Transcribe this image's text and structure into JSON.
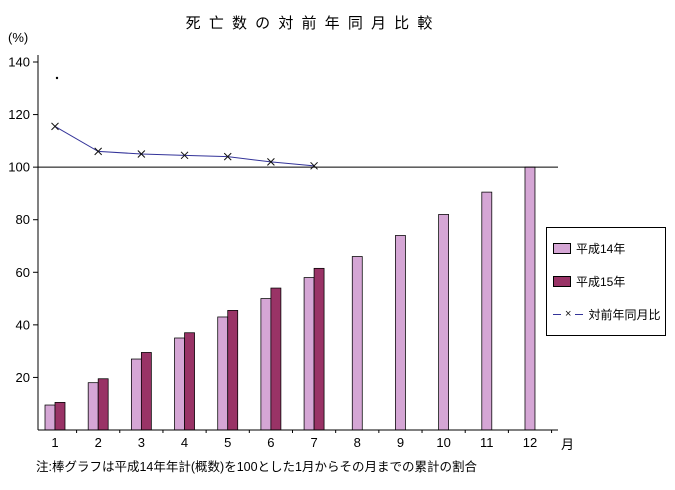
{
  "title": "死 亡 数 の 対 前 年 同 月 比 較",
  "y_axis_unit": "(%)",
  "x_axis_unit": "月",
  "note": "注:棒グラフは平成14年年計(概数)を100とした1月からその月までの累計の割合",
  "chart_data": {
    "type": "bar",
    "title": "死亡数の対前年同月比較",
    "categories": [
      "1",
      "2",
      "3",
      "4",
      "5",
      "6",
      "7",
      "8",
      "9",
      "10",
      "11",
      "12"
    ],
    "series": [
      {
        "name": "平成14年",
        "type": "bar",
        "color": "#d5a6d5",
        "values": [
          9.5,
          18,
          27,
          35,
          43,
          50,
          58,
          66,
          74,
          82,
          90.5,
          100
        ]
      },
      {
        "name": "平成15年",
        "type": "bar",
        "color": "#993366",
        "values": [
          10.5,
          19.5,
          29.5,
          37,
          45.5,
          54,
          61.5
        ]
      },
      {
        "name": "対前年同月比",
        "type": "line",
        "color": "#333399",
        "marker": "x",
        "values": [
          115.5,
          106,
          105,
          104.5,
          104,
          102,
          100.5
        ]
      }
    ],
    "ylim": [
      0,
      140
    ],
    "yticks": [
      20,
      40,
      60,
      80,
      100,
      120,
      140
    ],
    "reference_line": 100,
    "legend_position": "right",
    "grid": false
  }
}
